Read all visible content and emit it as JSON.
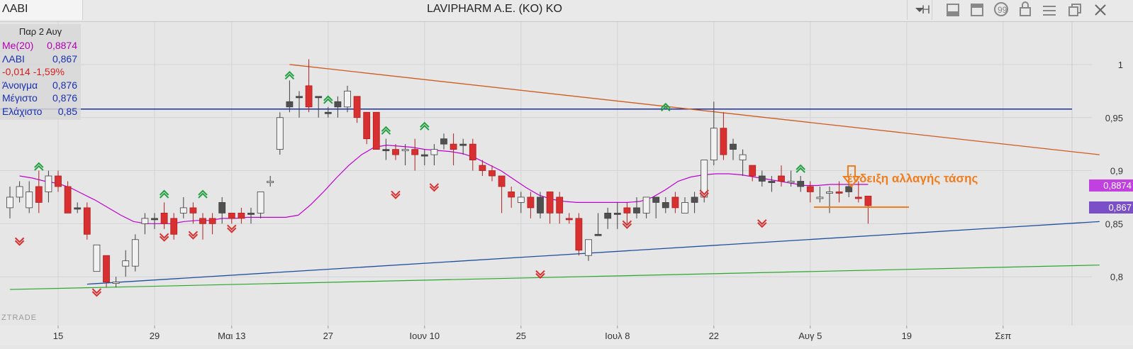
{
  "symbol": "ΛΑΒΙ",
  "window_title": "LAVIPHARM A.E. (KO) KO",
  "toolbar": {
    "dropdown_icon": "chevron-down-icon",
    "h_label": "H",
    "buttons": [
      "panel-icon",
      "bookmark-icon",
      "comment-icon",
      "lock-icon",
      "menu-icon",
      "restore-icon",
      "close-icon"
    ]
  },
  "info_panel": {
    "date": "Παρ 2 Αυγ",
    "rows": [
      {
        "label": "Me(20)",
        "value": "0,8874",
        "color": "#b300b3"
      },
      {
        "label": "ΛΑΒΙ",
        "value": "0,867",
        "color": "#1a2fb0"
      },
      {
        "label": "-0,014 -1,59%",
        "value": "",
        "color": "#d42020"
      },
      {
        "label": "Άνοιγμα",
        "value": "0,876",
        "color": "#1a2fb0"
      },
      {
        "label": "Μέγιστο",
        "value": "0,876",
        "color": "#1a2fb0"
      },
      {
        "label": "Ελάχιστο",
        "value": "0,85",
        "color": "#1a2fb0"
      }
    ]
  },
  "watermark": "ZTRADE",
  "annotation": "ένδειξη αλλαγής τάσης",
  "badges": {
    "ma": "0,8874",
    "price": "0,867",
    "ma_color": "#c040e0",
    "price_color": "#7b4fc8"
  },
  "chart_data": {
    "type": "candlestick",
    "y_range": [
      0.77,
      1.01
    ],
    "y_ticks": [
      {
        "v": 1,
        "label": "1"
      },
      {
        "v": 0.95,
        "label": "0,95"
      },
      {
        "v": 0.9,
        "label": "0,9"
      },
      {
        "v": 0.85,
        "label": "0,85"
      },
      {
        "v": 0.8,
        "label": "0,8"
      }
    ],
    "x_ticks": [
      "15",
      "29",
      "Μαι 13",
      "27",
      "Ιουν 10",
      "25",
      "Ιουλ 8",
      "22",
      "Αυγ 5",
      "19",
      "Σεπ"
    ],
    "x_tick_index": [
      5,
      15,
      23,
      33,
      43,
      53,
      63,
      73,
      83,
      93,
      103
    ],
    "colors": {
      "up": "#f2f2f2",
      "down": "#d83030",
      "neutral": "#505050",
      "ma": "#c000d0",
      "hline": "#1a2fa0",
      "trend_down": "#d05a20",
      "trend_up1": "#1f4fa0",
      "trend_up2": "#2aa82a",
      "arrow_up": "#20a040",
      "arrow_down": "#d83030",
      "annot": "#f07d1e"
    },
    "candles": [
      [
        0.875,
        0.885,
        0.855,
        0.865,
        "u"
      ],
      [
        0.875,
        0.89,
        0.87,
        0.885,
        "u"
      ],
      [
        0.88,
        0.89,
        0.86,
        0.865,
        "u"
      ],
      [
        0.885,
        0.9,
        0.86,
        0.87,
        "d"
      ],
      [
        0.88,
        0.9,
        0.87,
        0.895,
        "u"
      ],
      [
        0.895,
        0.9,
        0.88,
        0.885,
        "d"
      ],
      [
        0.885,
        0.89,
        0.86,
        0.86,
        "d"
      ],
      [
        0.865,
        0.87,
        0.86,
        0.865,
        "n"
      ],
      [
        0.865,
        0.87,
        0.835,
        0.84,
        "d"
      ],
      [
        0.83,
        0.83,
        0.805,
        0.805,
        "u"
      ],
      [
        0.82,
        0.82,
        0.79,
        0.795,
        "d"
      ],
      [
        0.795,
        0.8,
        0.79,
        0.795,
        "u"
      ],
      [
        0.81,
        0.825,
        0.8,
        0.815,
        "u"
      ],
      [
        0.81,
        0.84,
        0.805,
        0.835,
        "u"
      ],
      [
        0.85,
        0.86,
        0.84,
        0.855,
        "u"
      ],
      [
        0.855,
        0.86,
        0.845,
        0.855,
        "n"
      ],
      [
        0.86,
        0.87,
        0.845,
        0.85,
        "d"
      ],
      [
        0.855,
        0.86,
        0.835,
        0.84,
        "d"
      ],
      [
        0.86,
        0.875,
        0.855,
        0.865,
        "u"
      ],
      [
        0.865,
        0.87,
        0.85,
        0.86,
        "d"
      ],
      [
        0.855,
        0.86,
        0.835,
        0.85,
        "d"
      ],
      [
        0.855,
        0.86,
        0.84,
        0.85,
        "d"
      ],
      [
        0.87,
        0.875,
        0.85,
        0.86,
        "n"
      ],
      [
        0.86,
        0.86,
        0.85,
        0.855,
        "d"
      ],
      [
        0.86,
        0.865,
        0.85,
        0.855,
        "d"
      ],
      [
        0.86,
        0.865,
        0.85,
        0.86,
        "n"
      ],
      [
        0.86,
        0.88,
        0.855,
        0.88,
        "u"
      ],
      [
        0.89,
        0.895,
        0.885,
        0.89,
        "u"
      ],
      [
        0.92,
        0.955,
        0.915,
        0.95,
        "u"
      ],
      [
        0.96,
        0.985,
        0.955,
        0.965,
        "n"
      ],
      [
        0.97,
        0.975,
        0.95,
        0.97,
        "n"
      ],
      [
        0.98,
        1.005,
        0.955,
        0.96,
        "d"
      ],
      [
        0.97,
        0.97,
        0.95,
        0.97,
        "n"
      ],
      [
        0.955,
        0.96,
        0.95,
        0.955,
        "n"
      ],
      [
        0.965,
        0.97,
        0.95,
        0.96,
        "n"
      ],
      [
        0.975,
        0.98,
        0.955,
        0.96,
        "u"
      ],
      [
        0.97,
        0.97,
        0.945,
        0.95,
        "d"
      ],
      [
        0.955,
        0.955,
        0.925,
        0.93,
        "d"
      ],
      [
        0.955,
        0.955,
        0.92,
        0.92,
        "d"
      ],
      [
        0.92,
        0.93,
        0.91,
        0.92,
        "n"
      ],
      [
        0.92,
        0.925,
        0.91,
        0.915,
        "d"
      ],
      [
        0.92,
        0.925,
        0.905,
        0.92,
        "u"
      ],
      [
        0.92,
        0.93,
        0.9,
        0.915,
        "d"
      ],
      [
        0.915,
        0.92,
        0.905,
        0.915,
        "n"
      ],
      [
        0.915,
        0.925,
        0.905,
        0.92,
        "u"
      ],
      [
        0.93,
        0.935,
        0.92,
        0.925,
        "n"
      ],
      [
        0.925,
        0.935,
        0.905,
        0.92,
        "d"
      ],
      [
        0.925,
        0.93,
        0.915,
        0.925,
        "n"
      ],
      [
        0.925,
        0.93,
        0.9,
        0.91,
        "d"
      ],
      [
        0.905,
        0.91,
        0.895,
        0.9,
        "d"
      ],
      [
        0.9,
        0.905,
        0.89,
        0.895,
        "d"
      ],
      [
        0.895,
        0.895,
        0.86,
        0.885,
        "d"
      ],
      [
        0.88,
        0.885,
        0.865,
        0.875,
        "d"
      ],
      [
        0.875,
        0.88,
        0.86,
        0.87,
        "u"
      ],
      [
        0.875,
        0.88,
        0.855,
        0.865,
        "d"
      ],
      [
        0.875,
        0.88,
        0.855,
        0.86,
        "n"
      ],
      [
        0.88,
        0.88,
        0.85,
        0.86,
        "d"
      ],
      [
        0.875,
        0.88,
        0.85,
        0.86,
        "d"
      ],
      [
        0.855,
        0.86,
        0.85,
        0.855,
        "d"
      ],
      [
        0.855,
        0.86,
        0.82,
        0.825,
        "d"
      ],
      [
        0.82,
        0.835,
        0.815,
        0.835,
        "u"
      ],
      [
        0.84,
        0.86,
        0.84,
        0.84,
        "n"
      ],
      [
        0.86,
        0.865,
        0.845,
        0.855,
        "n"
      ],
      [
        0.86,
        0.87,
        0.845,
        0.86,
        "n"
      ],
      [
        0.86,
        0.87,
        0.85,
        0.865,
        "d"
      ],
      [
        0.865,
        0.875,
        0.855,
        0.86,
        "n"
      ],
      [
        0.86,
        0.875,
        0.855,
        0.875,
        "u"
      ],
      [
        0.875,
        0.875,
        0.855,
        0.87,
        "n"
      ],
      [
        0.87,
        0.875,
        0.86,
        0.865,
        "n"
      ],
      [
        0.865,
        0.88,
        0.86,
        0.875,
        "d"
      ],
      [
        0.86,
        0.875,
        0.86,
        0.87,
        "u"
      ],
      [
        0.87,
        0.88,
        0.86,
        0.875,
        "n"
      ],
      [
        0.875,
        0.91,
        0.87,
        0.91,
        "u"
      ],
      [
        0.91,
        0.965,
        0.905,
        0.94,
        "u"
      ],
      [
        0.94,
        0.955,
        0.91,
        0.915,
        "d"
      ],
      [
        0.925,
        0.93,
        0.91,
        0.92,
        "n"
      ],
      [
        0.915,
        0.92,
        0.895,
        0.91,
        "u"
      ],
      [
        0.905,
        0.905,
        0.89,
        0.895,
        "d"
      ],
      [
        0.895,
        0.9,
        0.885,
        0.89,
        "n"
      ],
      [
        0.89,
        0.895,
        0.88,
        0.89,
        "n"
      ],
      [
        0.895,
        0.905,
        0.885,
        0.89,
        "d"
      ],
      [
        0.89,
        0.9,
        0.885,
        0.89,
        "u"
      ],
      [
        0.89,
        0.895,
        0.88,
        0.885,
        "n"
      ],
      [
        0.885,
        0.89,
        0.87,
        0.88,
        "d"
      ],
      [
        0.875,
        0.885,
        0.87,
        0.875,
        "u"
      ],
      [
        0.88,
        0.885,
        0.86,
        0.88,
        "u"
      ],
      [
        0.88,
        0.89,
        0.87,
        0.88,
        "d"
      ],
      [
        0.885,
        0.895,
        0.875,
        0.88,
        "n"
      ],
      [
        0.875,
        0.89,
        0.87,
        0.875,
        "d"
      ],
      [
        0.876,
        0.876,
        0.85,
        0.867,
        "d"
      ]
    ],
    "ma20": [
      0.895,
      0.893,
      0.89,
      0.888,
      0.884,
      0.878,
      0.872,
      0.865,
      0.858,
      0.852,
      0.85,
      0.85,
      0.85,
      0.852,
      0.853,
      0.853,
      0.855,
      0.855,
      0.856,
      0.856,
      0.856,
      0.856,
      0.858,
      0.868,
      0.88,
      0.893,
      0.905,
      0.915,
      0.922,
      0.924,
      0.923,
      0.922,
      0.92,
      0.919,
      0.918,
      0.916,
      0.912,
      0.906,
      0.9,
      0.892,
      0.884,
      0.877,
      0.873,
      0.871,
      0.87,
      0.87,
      0.87,
      0.87,
      0.87,
      0.871,
      0.875,
      0.882,
      0.89,
      0.894,
      0.896,
      0.897,
      0.897,
      0.896,
      0.894,
      0.892,
      0.89,
      0.888,
      0.886,
      0.886,
      0.887,
      0.887,
      0.887,
      0.887
    ],
    "ma_start_index": 1,
    "hline": 0.958,
    "trend_down": {
      "from": [
        29,
        1.0
      ],
      "to": [
        113,
        0.915
      ]
    },
    "trend_up1": {
      "from": [
        8,
        0.793
      ],
      "to": [
        113,
        0.852
      ]
    },
    "trend_up2": {
      "from": [
        0,
        0.788
      ],
      "to": [
        113,
        0.811
      ]
    },
    "arrows_up": [
      [
        3,
        0.905
      ],
      [
        16,
        0.879
      ],
      [
        20,
        0.879
      ],
      [
        29,
        0.991
      ],
      [
        33,
        0.968
      ],
      [
        39,
        0.939
      ],
      [
        43,
        0.943
      ],
      [
        68,
        0.961
      ],
      [
        82,
        0.903
      ]
    ],
    "arrows_down": [
      [
        1,
        0.832
      ],
      [
        9,
        0.784
      ],
      [
        16,
        0.836
      ],
      [
        19,
        0.838
      ],
      [
        23,
        0.844
      ],
      [
        40,
        0.876
      ],
      [
        44,
        0.883
      ],
      [
        55,
        0.801
      ],
      [
        64,
        0.848
      ],
      [
        72,
        0.877
      ],
      [
        78,
        0.849
      ]
    ]
  }
}
